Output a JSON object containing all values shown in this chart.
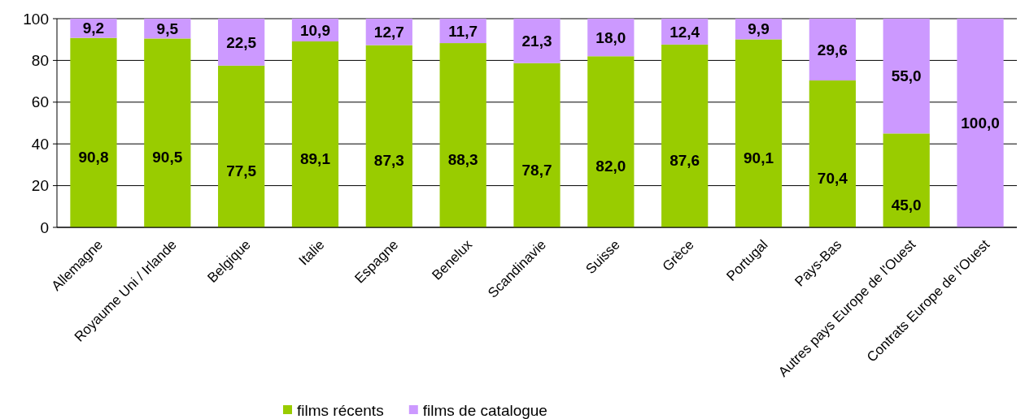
{
  "chart_data": {
    "type": "bar",
    "stacked": true,
    "categories": [
      "Allemagne",
      "Royaume Uni / Irlande",
      "Belgique",
      "Italie",
      "Espagne",
      "Benelux",
      "Scandinavie",
      "Suisse",
      "Grèce",
      "Portugal",
      "Pays-Bas",
      "Autres pays Europe de l'Ouest",
      "Contrats Europe de l'Ouest"
    ],
    "series": [
      {
        "name": "films récents",
        "color": "#99cc00",
        "values": [
          90.8,
          90.5,
          77.5,
          89.1,
          87.3,
          88.3,
          78.7,
          82.0,
          87.6,
          90.1,
          70.4,
          45.0,
          0
        ],
        "value_labels": [
          "90,8",
          "90,5",
          "77,5",
          "89,1",
          "87,3",
          "88,3",
          "78,7",
          "82,0",
          "87,6",
          "90,1",
          "70,4",
          "45,0",
          null
        ]
      },
      {
        "name": "films de catalogue",
        "color": "#cc99ff",
        "values": [
          9.2,
          9.5,
          22.5,
          10.9,
          12.7,
          11.7,
          21.3,
          18.0,
          12.4,
          9.9,
          29.6,
          55.0,
          100.0
        ],
        "value_labels": [
          "9,2",
          "9,5",
          "22,5",
          "10,9",
          "12,7",
          "11,7",
          "21,3",
          "18,0",
          "12,4",
          "9,9",
          "29,6",
          "55,0",
          "100,0"
        ]
      }
    ],
    "ylim": [
      0,
      100
    ],
    "yticks": [
      0,
      20,
      40,
      60,
      80,
      100
    ],
    "grid": "y",
    "legend": "bottom"
  }
}
